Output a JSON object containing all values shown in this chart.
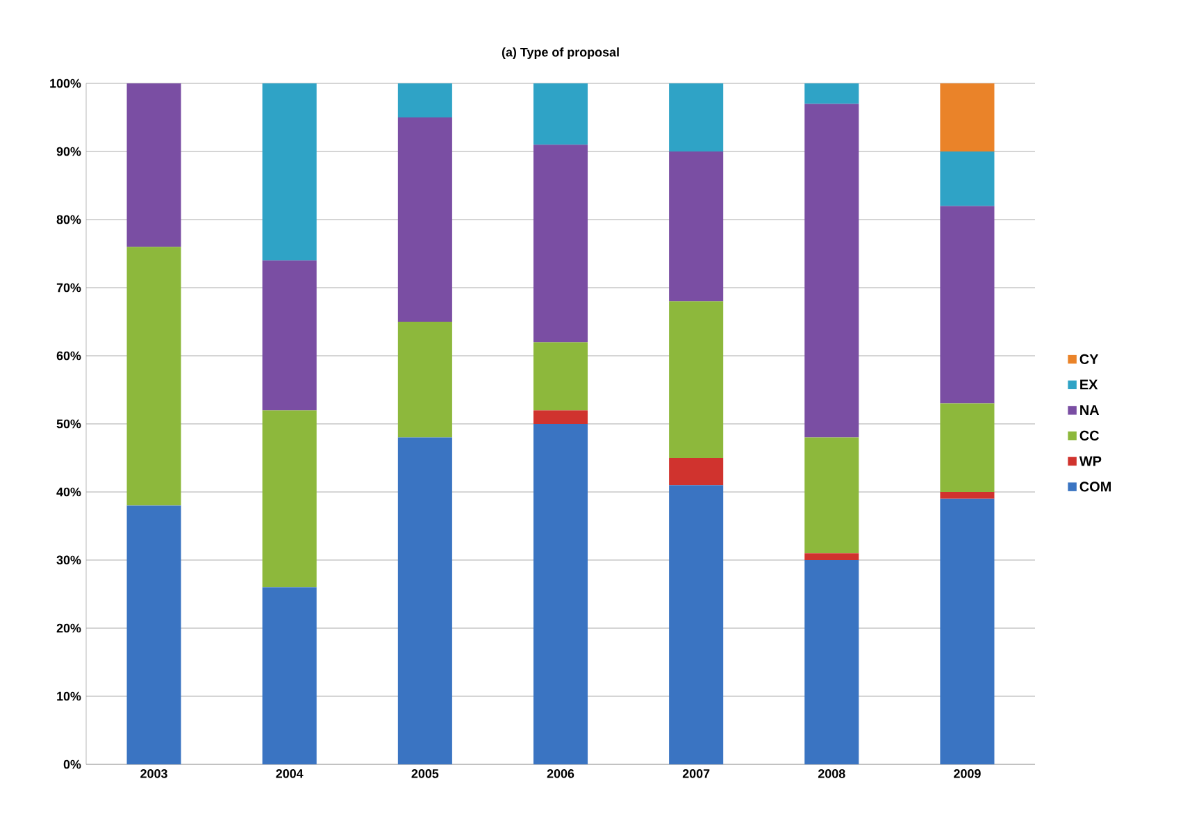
{
  "chart_data": {
    "type": "bar",
    "stacked": true,
    "title": "(a) Type of proposal",
    "categories": [
      "2003",
      "2004",
      "2005",
      "2006",
      "2007",
      "2008",
      "2009"
    ],
    "series": [
      {
        "name": "COM",
        "color": "#3a74c2",
        "values": [
          38,
          26,
          48,
          50,
          41,
          30,
          39
        ]
      },
      {
        "name": "WP",
        "color": "#d0332e",
        "values": [
          0,
          0,
          0,
          2,
          4,
          1,
          1
        ]
      },
      {
        "name": "CC",
        "color": "#8db83c",
        "values": [
          38,
          26,
          17,
          10,
          23,
          17,
          13
        ]
      },
      {
        "name": "NA",
        "color": "#7a4ea3",
        "values": [
          24,
          22,
          30,
          29,
          22,
          49,
          29
        ]
      },
      {
        "name": "EX",
        "color": "#2fa3c6",
        "values": [
          0,
          26,
          5,
          9,
          10,
          3,
          8
        ]
      },
      {
        "name": "CY",
        "color": "#ea8329",
        "values": [
          0,
          0,
          0,
          0,
          0,
          0,
          10
        ]
      }
    ],
    "ylim": [
      0,
      100
    ],
    "yticks": [
      {
        "value": 0,
        "label": "0%"
      },
      {
        "value": 10,
        "label": "10%"
      },
      {
        "value": 20,
        "label": "20%"
      },
      {
        "value": 30,
        "label": "30%"
      },
      {
        "value": 40,
        "label": "40%"
      },
      {
        "value": 50,
        "label": "50%"
      },
      {
        "value": 60,
        "label": "60%"
      },
      {
        "value": 70,
        "label": "70%"
      },
      {
        "value": 80,
        "label": "80%"
      },
      {
        "value": 90,
        "label": "90%"
      },
      {
        "value": 100,
        "label": "100%"
      }
    ],
    "grid": "y",
    "legend": "right"
  }
}
